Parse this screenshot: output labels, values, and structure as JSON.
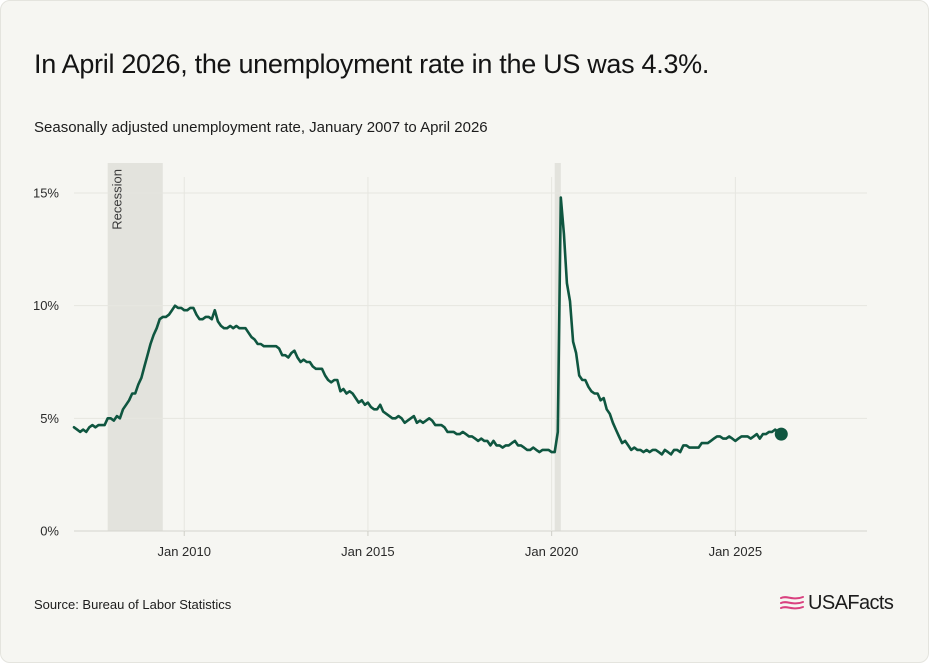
{
  "header": {
    "title": "In April 2026, the unemployment rate in the US was 4.3%.",
    "subtitle": "Seasonally adjusted unemployment rate, January 2007 to April 2026"
  },
  "footer": {
    "source": "Source: Bureau of Labor Statistics",
    "logo_text": "USAFacts"
  },
  "colors": {
    "line": "#0f5640",
    "recession": "#e3e3dd",
    "grid": "#e6e6e0",
    "logo_accent": "#d9407f"
  },
  "chart_data": {
    "type": "line",
    "title": "In April 2026, the unemployment rate in the US was 4.3%.",
    "subtitle": "Seasonally adjusted unemployment rate, January 2007 to April 2026",
    "xlabel": "",
    "ylabel": "",
    "xlim": [
      "2007-01",
      "2028-08"
    ],
    "ylim": [
      0,
      16
    ],
    "x_ticks": [
      "2010-01",
      "2015-01",
      "2020-01",
      "2025-01"
    ],
    "x_tick_labels": [
      "Jan 2010",
      "Jan 2015",
      "Jan 2020",
      "Jan 2025"
    ],
    "y_ticks": [
      0,
      5,
      10,
      15
    ],
    "y_tick_labels": [
      "0%",
      "5%",
      "10%",
      "15%"
    ],
    "grid": true,
    "recessions": [
      {
        "start": "2007-12",
        "end": "2009-06",
        "label": "Recession"
      },
      {
        "start": "2020-02",
        "end": "2020-04",
        "label": ""
      }
    ],
    "last_point_marker": true,
    "series": [
      {
        "start": "2007-01",
        "frequency": "monthly",
        "values": [
          4.6,
          4.5,
          4.4,
          4.5,
          4.4,
          4.6,
          4.7,
          4.6,
          4.7,
          4.7,
          4.7,
          5.0,
          5.0,
          4.9,
          5.1,
          5.0,
          5.4,
          5.6,
          5.8,
          6.1,
          6.1,
          6.5,
          6.8,
          7.3,
          7.8,
          8.3,
          8.7,
          9.0,
          9.4,
          9.5,
          9.5,
          9.6,
          9.8,
          10.0,
          9.9,
          9.9,
          9.8,
          9.8,
          9.9,
          9.9,
          9.6,
          9.4,
          9.4,
          9.5,
          9.5,
          9.4,
          9.8,
          9.3,
          9.1,
          9.0,
          9.0,
          9.1,
          9.0,
          9.1,
          9.0,
          9.0,
          9.0,
          8.8,
          8.6,
          8.5,
          8.3,
          8.3,
          8.2,
          8.2,
          8.2,
          8.2,
          8.2,
          8.1,
          7.8,
          7.8,
          7.7,
          7.9,
          8.0,
          7.7,
          7.5,
          7.6,
          7.5,
          7.5,
          7.3,
          7.2,
          7.2,
          7.2,
          6.9,
          6.7,
          6.6,
          6.7,
          6.7,
          6.2,
          6.3,
          6.1,
          6.2,
          6.1,
          5.9,
          5.7,
          5.8,
          5.6,
          5.7,
          5.5,
          5.4,
          5.4,
          5.6,
          5.3,
          5.2,
          5.1,
          5.0,
          5.0,
          5.1,
          5.0,
          4.8,
          4.9,
          5.0,
          5.1,
          4.8,
          4.9,
          4.8,
          4.9,
          5.0,
          4.9,
          4.7,
          4.7,
          4.7,
          4.6,
          4.4,
          4.4,
          4.4,
          4.3,
          4.3,
          4.4,
          4.3,
          4.2,
          4.2,
          4.1,
          4.0,
          4.1,
          4.0,
          4.0,
          3.8,
          4.0,
          3.8,
          3.8,
          3.7,
          3.8,
          3.8,
          3.9,
          4.0,
          3.8,
          3.8,
          3.7,
          3.6,
          3.6,
          3.7,
          3.6,
          3.5,
          3.6,
          3.6,
          3.6,
          3.5,
          3.5,
          4.4,
          14.8,
          13.2,
          11.0,
          10.2,
          8.4,
          7.9,
          6.9,
          6.7,
          6.7,
          6.4,
          6.2,
          6.1,
          6.1,
          5.8,
          5.9,
          5.4,
          5.2,
          4.8,
          4.5,
          4.2,
          3.9,
          4.0,
          3.8,
          3.6,
          3.7,
          3.6,
          3.6,
          3.5,
          3.6,
          3.5,
          3.6,
          3.6,
          3.5,
          3.4,
          3.6,
          3.5,
          3.4,
          3.6,
          3.6,
          3.5,
          3.8,
          3.8,
          3.7,
          3.7,
          3.7,
          3.7,
          3.9,
          3.9,
          3.9,
          4.0,
          4.1,
          4.2,
          4.2,
          4.1,
          4.1,
          4.2,
          4.1,
          4.0,
          4.1,
          4.2,
          4.2,
          4.2,
          4.1,
          4.2,
          4.3,
          4.1,
          4.3,
          4.3,
          4.4,
          4.4,
          4.5,
          4.4,
          4.3
        ]
      }
    ]
  }
}
